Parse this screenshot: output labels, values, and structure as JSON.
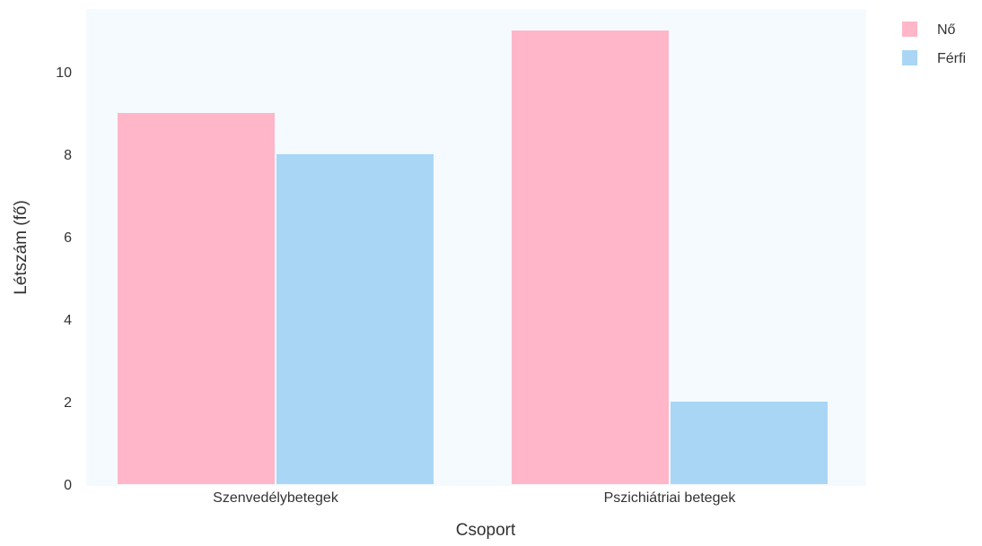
{
  "chart_data": {
    "type": "bar",
    "categories": [
      "Szenvedélybetegek",
      "Pszichiátriai betegek"
    ],
    "series": [
      {
        "name": "Nő",
        "values": [
          9,
          11
        ],
        "color": "#FFB6C8"
      },
      {
        "name": "Férfi",
        "values": [
          8,
          2
        ],
        "color": "#A9D6F5"
      }
    ],
    "xlabel": "Csoport",
    "ylabel": "Létszám (fő)",
    "ylim": [
      0,
      11.5
    ],
    "yticks": [
      0,
      2,
      4,
      6,
      8,
      10
    ],
    "grid": false,
    "legend_position": "top-right",
    "panel_background": "#F5FAFE"
  }
}
